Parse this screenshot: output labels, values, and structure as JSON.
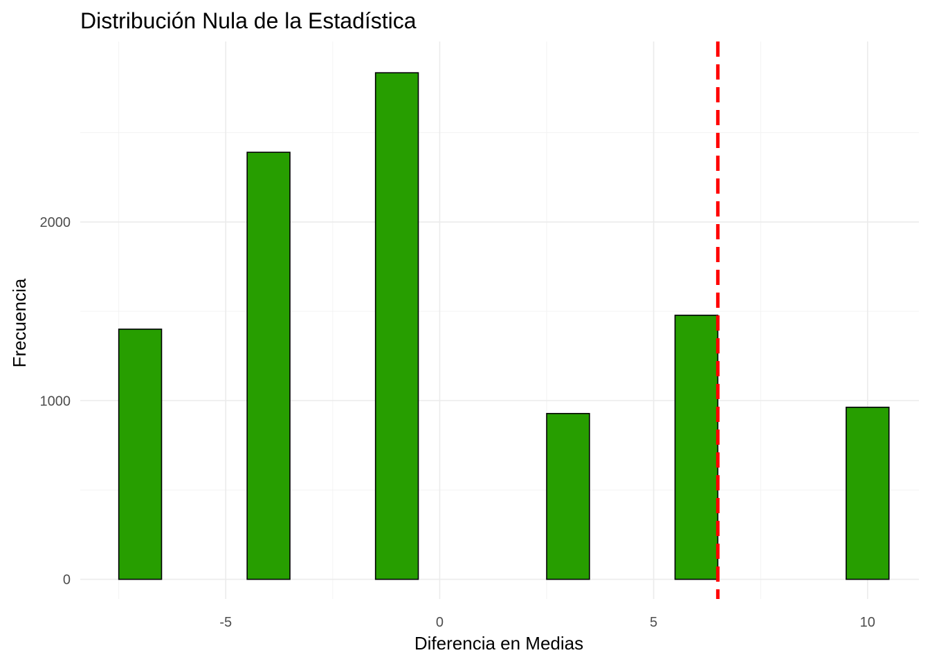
{
  "chart_data": {
    "type": "bar",
    "title": "Distribución Nula de la Estadística",
    "xlabel": "Diferencia en Medias",
    "ylabel": "Frecuencia",
    "xlim": [
      -8.4,
      11.2
    ],
    "ylim": [
      -110,
      3010
    ],
    "x_ticks": [
      -5,
      0,
      5,
      10
    ],
    "x_tick_labels": [
      "-5",
      "0",
      "5",
      "10"
    ],
    "x_minor_ticks": [
      -7.5,
      -2.5,
      2.5,
      7.5
    ],
    "y_ticks": [
      0,
      1000,
      2000
    ],
    "y_tick_labels": [
      "0",
      "1000",
      "2000"
    ],
    "y_minor_ticks": [
      500,
      1500,
      2500
    ],
    "bin_width": 1,
    "bins": [
      {
        "center": -7,
        "count": 1400
      },
      {
        "center": -6,
        "count": 0
      },
      {
        "center": -5,
        "count": 0
      },
      {
        "center": -4,
        "count": 2390
      },
      {
        "center": -3,
        "count": 0
      },
      {
        "center": -2,
        "count": 0
      },
      {
        "center": -1,
        "count": 2835
      },
      {
        "center": 0,
        "count": 0
      },
      {
        "center": 1,
        "count": 0
      },
      {
        "center": 2,
        "count": 0
      },
      {
        "center": 3,
        "count": 928
      },
      {
        "center": 4,
        "count": 0
      },
      {
        "center": 5,
        "count": 0
      },
      {
        "center": 6,
        "count": 1478
      },
      {
        "center": 7,
        "count": 0
      },
      {
        "center": 8,
        "count": 0
      },
      {
        "center": 9,
        "count": 0
      },
      {
        "center": 10,
        "count": 963
      }
    ],
    "reference_line": {
      "x": 6.5,
      "style": "dashed"
    },
    "grid": true,
    "legend": "none"
  },
  "colors": {
    "bar_fill": "#279e00",
    "bar_outline": "#000000",
    "reference_line": "#ff0000"
  }
}
